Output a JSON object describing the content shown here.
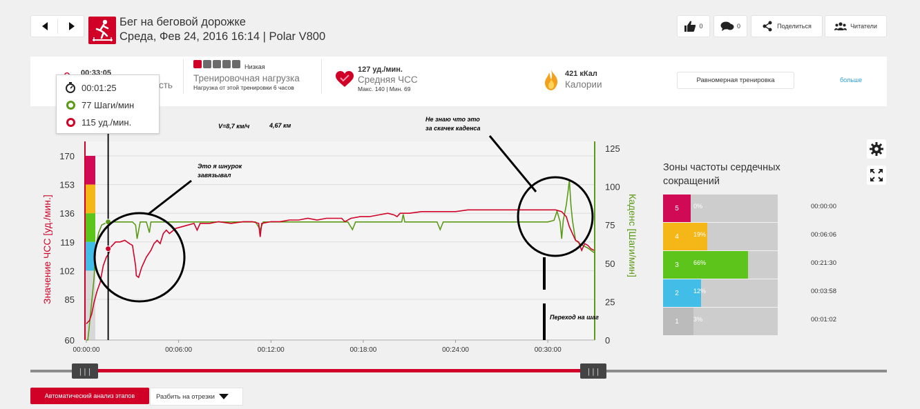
{
  "header": {
    "title": "Бег на беговой дорожке",
    "subtitle": "Среда, Фев 24, 2016 16:14 | Polar V800",
    "likes_count": "0",
    "comments_count": "0",
    "share_label": "Поделиться",
    "readers_label": "Читатели"
  },
  "summary": {
    "duration_value": "00:33:05",
    "duration_label_partial": "сть",
    "training_load_level": "Низкая",
    "training_load_label": "Тренировочная нагрузка",
    "training_load_desc": "Нагрузка от этой тренировки 6 часов",
    "avg_hr_value": "127 уд./мин.",
    "avg_hr_label": "Средняя ЧСС",
    "avg_hr_range": "Макс. 140  |  Мин. 69",
    "calories_value": "421 кКал",
    "calories_label": "Калории",
    "training_type_button": "Равномерная тренировка",
    "more_link": "больше"
  },
  "tooltip": {
    "time": "00:01:25",
    "cadence": "77 Шаги/мин",
    "hr": "115 уд./мин."
  },
  "annotations": {
    "speed": "V=8,7 км/ч",
    "distance": "4,67 км",
    "note1_line1": "Это я шнурок",
    "note1_line2": "завязывал",
    "note2_line1": "Не знаю что это",
    "note2_line2": "за скачек каденса",
    "note3": "Переход на шаг"
  },
  "chart_data": {
    "type": "line",
    "ylabel_left": "Значение ЧСС [уд./мин.]",
    "ylabel_right": "Каденс [Шаги/мин]",
    "y_left_ticks": [
      "170",
      "153",
      "136",
      "119",
      "102",
      "85",
      "60"
    ],
    "y_right_ticks": [
      "125",
      "100",
      "75",
      "50",
      "25",
      "0"
    ],
    "x_ticks": [
      "00:00:00",
      "00:06:00",
      "00:12:00",
      "00:18:00",
      "00:24:00",
      "00:30:00"
    ],
    "xlim_min": [
      0,
      33
    ],
    "ylim_hr": [
      60,
      180
    ],
    "ylim_cadence": [
      0,
      130
    ],
    "series": [
      {
        "name": "Значение ЧСС",
        "color": "#d10027",
        "x": [
          0,
          0.2,
          0.35,
          0.5,
          0.7,
          0.9,
          1.1,
          1.3,
          1.45,
          1.6,
          1.9,
          2.2,
          2.5,
          2.8,
          3.0,
          3.2,
          3.25,
          3.4,
          3.6,
          3.9,
          4.2,
          4.4,
          4.6,
          4.8,
          5.0,
          5.2,
          5.4,
          5.8,
          6.2,
          6.6,
          7.0,
          7.2,
          7.4,
          8.0,
          8.6,
          9.4,
          10.2,
          10.8,
          11.2,
          11.3,
          11.4,
          12.0,
          12.6,
          13.2,
          13.8,
          14.4,
          15.0,
          15.6,
          16.2,
          16.6,
          16.8,
          17.2,
          17.8,
          18.4,
          19.0,
          19.6,
          20.0,
          20.2,
          20.4,
          21.0,
          21.8,
          22.5,
          23.2,
          24.0,
          24.8,
          25.6,
          26.4,
          27.0,
          27.6,
          28.2,
          28.8,
          29.4,
          30.0,
          30.5,
          30.9,
          31.2,
          31.4,
          31.6,
          31.8,
          32.0,
          32.2,
          32.4,
          32.6,
          32.8,
          33.0
        ],
        "y": [
          70,
          72,
          76,
          83,
          90,
          95,
          105,
          110,
          112,
          116,
          119,
          119,
          120,
          118,
          117,
          105,
          99,
          98,
          104,
          110,
          114,
          118,
          120,
          118,
          124,
          126,
          124,
          127,
          128,
          129,
          130,
          126,
          130,
          130,
          131,
          130,
          131,
          131,
          130,
          122,
          130,
          131,
          131,
          132,
          132,
          133,
          132,
          133,
          133,
          133,
          131,
          133,
          134,
          134,
          135,
          136,
          135,
          134,
          136,
          136,
          137,
          137,
          137,
          137,
          138,
          138,
          138,
          138,
          138,
          138,
          138,
          138,
          138,
          138,
          137,
          134,
          128,
          124,
          120,
          119,
          114,
          118,
          117,
          115,
          114
        ]
      },
      {
        "name": "Каденс",
        "color": "#5a9a16",
        "x": [
          0,
          0.1,
          0.2,
          0.3,
          0.5,
          0.6,
          0.8,
          1.0,
          1.2,
          1.5,
          2.0,
          2.5,
          3.0,
          3.2,
          3.3,
          3.5,
          3.9,
          4.1,
          4.2,
          4.4,
          5.0,
          6.0,
          8.0,
          10.0,
          11.0,
          11.3,
          11.5,
          12.0,
          14.0,
          16.0,
          17.0,
          17.3,
          17.5,
          18.0,
          19.0,
          20.0,
          20.5,
          20.6,
          20.7,
          21.0,
          22.0,
          22.8,
          23.0,
          23.2,
          24.0,
          26.0,
          28.0,
          29.0,
          29.5,
          30.0,
          30.4,
          30.6,
          30.8,
          30.9,
          31.0,
          31.2,
          31.4,
          31.5,
          31.6,
          31.8,
          32.2,
          32.6,
          33.0
        ],
        "y": [
          0,
          0,
          10,
          20,
          40,
          60,
          70,
          75,
          76,
          77,
          77,
          77,
          77,
          75,
          66,
          77,
          77,
          70,
          77,
          77,
          77,
          77,
          77,
          77,
          77,
          72,
          77,
          77,
          77,
          77,
          77,
          72,
          77,
          77,
          77,
          77,
          77,
          82,
          77,
          77,
          77,
          77,
          72,
          77,
          77,
          77,
          77,
          77,
          77,
          77,
          78,
          84,
          77,
          66,
          78,
          88,
          104,
          88,
          78,
          65,
          62,
          60,
          57
        ]
      }
    ]
  },
  "zones": {
    "title": "Зоны частоты сердечных сокращений",
    "rows": [
      {
        "zone": "5",
        "pct": "0%",
        "fraction": 0.0,
        "time": "00:00:00",
        "color": "#d10a55"
      },
      {
        "zone": "4",
        "pct": "19%",
        "fraction": 0.19,
        "time": "00:06:06",
        "color": "#f5b618"
      },
      {
        "zone": "3",
        "pct": "66%",
        "fraction": 0.66,
        "time": "00:21:30",
        "color": "#5dc41b"
      },
      {
        "zone": "2",
        "pct": "12%",
        "fraction": 0.12,
        "time": "00:03:58",
        "color": "#42bde8"
      },
      {
        "zone": "1",
        "pct": "3%",
        "fraction": 0.03,
        "time": "00:01:02",
        "color": "#bbbbbb"
      }
    ]
  },
  "bottom": {
    "auto_analysis": "Автоматический анализ этапов",
    "split_segments": "Разбить на отрезки"
  }
}
